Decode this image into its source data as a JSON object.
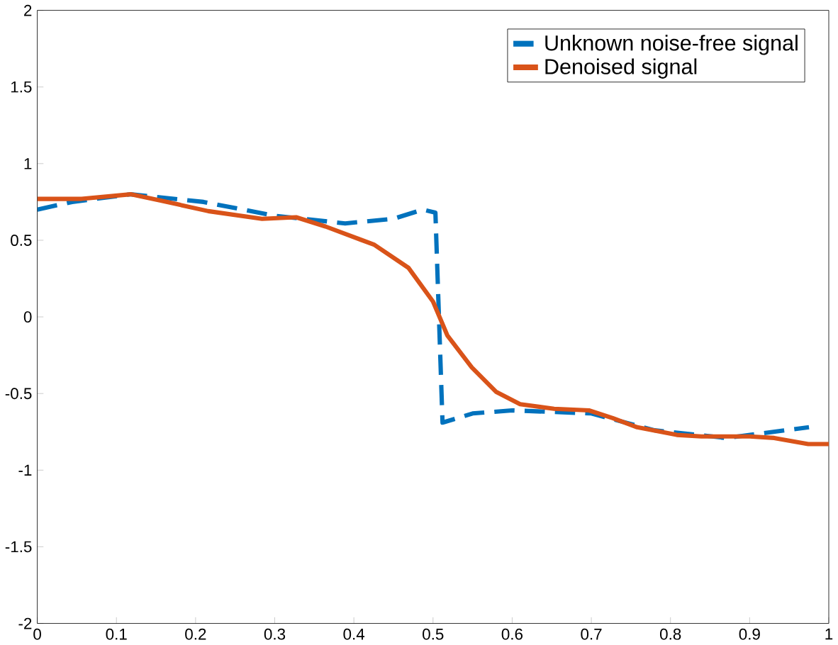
{
  "chart_data": {
    "type": "line",
    "xlim": [
      0,
      1
    ],
    "ylim": [
      -2,
      2
    ],
    "xticks": [
      0,
      0.1,
      0.2,
      0.3,
      0.4,
      0.5,
      0.6,
      0.7,
      0.8,
      0.9,
      1
    ],
    "yticks": [
      -2,
      -1.5,
      -1,
      -0.5,
      0,
      0.5,
      1,
      1.5,
      2
    ],
    "grid": false,
    "legend": "top right",
    "marker": "none",
    "series": [
      {
        "name": "Unknown noise-free signal",
        "color": "#0072bd",
        "line_style": "dashed",
        "x": [
          0,
          0.044,
          0.118,
          0.21,
          0.3,
          0.389,
          0.45,
          0.487,
          0.503,
          0.512,
          0.55,
          0.6,
          0.7,
          0.78,
          0.87,
          0.975
        ],
        "values": [
          0.7,
          0.75,
          0.8,
          0.75,
          0.66,
          0.61,
          0.64,
          0.7,
          0.68,
          -0.69,
          -0.63,
          -0.61,
          -0.63,
          -0.74,
          -0.79,
          -0.72
        ]
      },
      {
        "name": "Denoised signal",
        "color": "#d95319",
        "line_style": "solid",
        "x": [
          0,
          0.056,
          0.118,
          0.155,
          0.216,
          0.284,
          0.327,
          0.364,
          0.426,
          0.469,
          0.5,
          0.518,
          0.549,
          0.58,
          0.61,
          0.653,
          0.697,
          0.727,
          0.758,
          0.808,
          0.839,
          0.9,
          0.931,
          0.974,
          1
        ],
        "values": [
          0.77,
          0.77,
          0.8,
          0.76,
          0.69,
          0.64,
          0.65,
          0.59,
          0.47,
          0.32,
          0.1,
          -0.12,
          -0.33,
          -0.49,
          -0.57,
          -0.6,
          -0.61,
          -0.66,
          -0.72,
          -0.77,
          -0.78,
          -0.78,
          -0.79,
          -0.83,
          -0.83
        ]
      }
    ]
  }
}
